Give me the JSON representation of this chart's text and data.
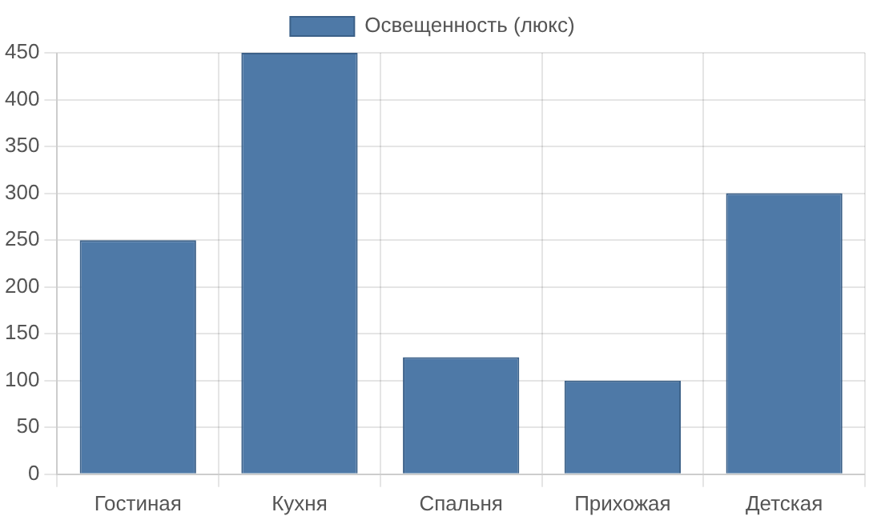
{
  "chart_data": {
    "type": "bar",
    "categories": [
      "Гостиная",
      "Кухня",
      "Спальня",
      "Прихожая",
      "Детская"
    ],
    "series": [
      {
        "name": "Освещенность (люкс)",
        "color": "#4e79a7",
        "values": [
          250,
          450,
          125,
          100,
          300
        ]
      }
    ],
    "ylim": [
      0,
      450
    ],
    "yticks": [
      0,
      50,
      100,
      150,
      200,
      250,
      300,
      350,
      400,
      450
    ],
    "grid": true,
    "legend": "top"
  }
}
